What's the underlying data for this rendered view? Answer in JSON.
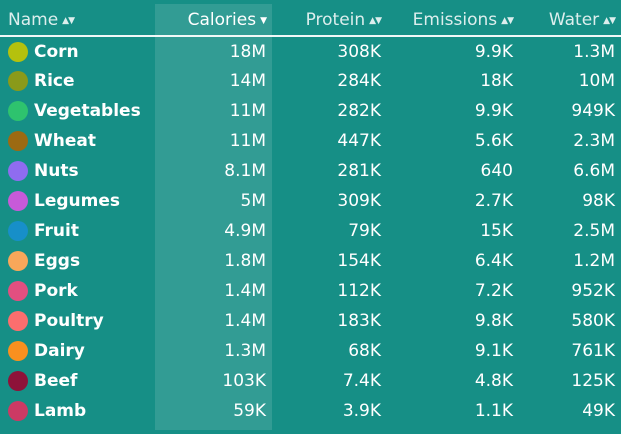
{
  "columns": {
    "name": "Name",
    "calories": "Calories",
    "protein": "Protein",
    "emissions": "Emissions",
    "water": "Water"
  },
  "sort": {
    "column": "calories",
    "sorted_arrow": "▼",
    "unsorted_arrow": "▲▼"
  },
  "rows": [
    {
      "name": "Corn",
      "color": "#b5c10d",
      "calories": "18M",
      "protein": "308K",
      "emissions": "9.9K",
      "water": "1.3M"
    },
    {
      "name": "Rice",
      "color": "#8a9a1a",
      "calories": "14M",
      "protein": "284K",
      "emissions": "18K",
      "water": "10M"
    },
    {
      "name": "Vegetables",
      "color": "#2ec36e",
      "calories": "11M",
      "protein": "282K",
      "emissions": "9.9K",
      "water": "949K"
    },
    {
      "name": "Wheat",
      "color": "#9c6a12",
      "calories": "11M",
      "protein": "447K",
      "emissions": "5.6K",
      "water": "2.3M"
    },
    {
      "name": "Nuts",
      "color": "#8f6cf0",
      "calories": "8.1M",
      "protein": "281K",
      "emissions": "640",
      "water": "6.6M"
    },
    {
      "name": "Legumes",
      "color": "#c75ad9",
      "calories": "5M",
      "protein": "309K",
      "emissions": "2.7K",
      "water": "98K"
    },
    {
      "name": "Fruit",
      "color": "#178fc9",
      "calories": "4.9M",
      "protein": "79K",
      "emissions": "15K",
      "water": "2.5M"
    },
    {
      "name": "Eggs",
      "color": "#f8a75a",
      "calories": "1.8M",
      "protein": "154K",
      "emissions": "6.4K",
      "water": "1.2M"
    },
    {
      "name": "Pork",
      "color": "#e24f80",
      "calories": "1.4M",
      "protein": "112K",
      "emissions": "7.2K",
      "water": "952K"
    },
    {
      "name": "Poultry",
      "color": "#fb6e6e",
      "calories": "1.4M",
      "protein": "183K",
      "emissions": "9.8K",
      "water": "580K"
    },
    {
      "name": "Dairy",
      "color": "#f9901f",
      "calories": "1.3M",
      "protein": "68K",
      "emissions": "9.1K",
      "water": "761K"
    },
    {
      "name": "Beef",
      "color": "#8e1239",
      "calories": "103K",
      "protein": "7.4K",
      "emissions": "4.8K",
      "water": "125K"
    },
    {
      "name": "Lamb",
      "color": "#cc3a64",
      "calories": "59K",
      "protein": "3.9K",
      "emissions": "1.1K",
      "water": "49K"
    }
  ]
}
